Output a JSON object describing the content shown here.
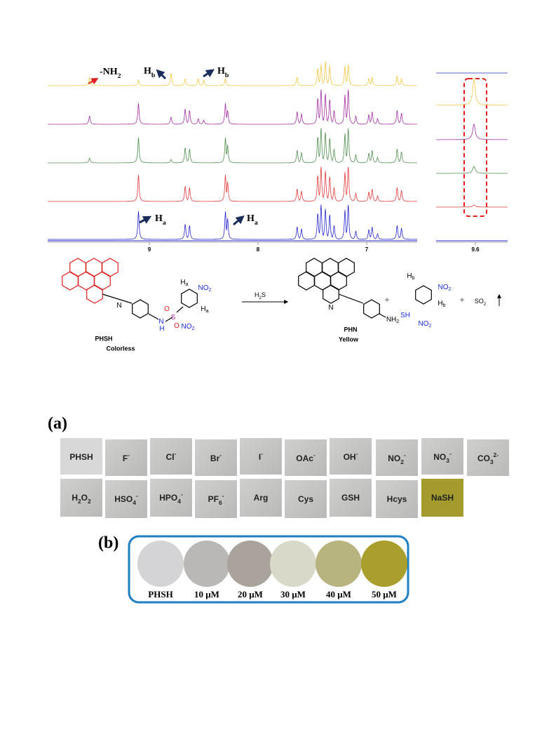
{
  "nmr": {
    "annotations": [
      [
        {
          "text": "-NH"
        },
        {
          "text": "2",
          "pos": "sub"
        }
      ],
      [
        {
          "text": "H"
        },
        {
          "text": "b",
          "pos": "sub"
        }
      ],
      [
        {
          "text": "H"
        },
        {
          "text": "b",
          "pos": "sub"
        }
      ],
      [
        {
          "text": "H"
        },
        {
          "text": "a",
          "pos": "sub"
        }
      ],
      [
        {
          "text": "H"
        },
        {
          "text": "a",
          "pos": "sub"
        }
      ]
    ],
    "axis_ticks": [
      "9",
      "8",
      "7"
    ],
    "inset_tick": "9.6"
  },
  "scheme": {
    "reactant": {
      "name": "PHSH",
      "state": "Colorless"
    },
    "reagent": [
      {
        "text": "H"
      },
      {
        "text": "2",
        "pos": "sub"
      },
      {
        "text": "S"
      }
    ],
    "product": {
      "name": "PHN",
      "state": "Yellow"
    },
    "plus": [
      "+",
      "+"
    ],
    "byproduct": [
      {
        "text": "SO"
      },
      {
        "text": "2",
        "pos": "sub"
      }
    ],
    "reactant_atoms": [
      [
        {
          "text": "N"
        }
      ],
      [
        {
          "text": "N"
        }
      ],
      [
        {
          "text": "H"
        }
      ],
      [
        {
          "text": "S"
        }
      ],
      [
        {
          "text": "O"
        }
      ],
      [
        {
          "text": "O"
        }
      ],
      [
        {
          "text": "H"
        },
        {
          "text": "a",
          "pos": "sub"
        }
      ],
      [
        {
          "text": "H"
        },
        {
          "text": "a",
          "pos": "sub"
        }
      ],
      [
        {
          "text": "NO"
        },
        {
          "text": "2",
          "pos": "sub"
        }
      ],
      [
        {
          "text": "NO"
        },
        {
          "text": "2",
          "pos": "sub"
        }
      ]
    ],
    "product_atoms": [
      [
        {
          "text": "N"
        }
      ],
      [
        {
          "text": "NH"
        },
        {
          "text": "2",
          "pos": "sub"
        }
      ]
    ],
    "byproduct_atoms": [
      [
        {
          "text": "H"
        },
        {
          "text": "b",
          "pos": "sub"
        }
      ],
      [
        {
          "text": "H"
        },
        {
          "text": "b",
          "pos": "sub"
        }
      ],
      [
        {
          "text": "NO"
        },
        {
          "text": "2",
          "pos": "sub"
        }
      ],
      [
        {
          "text": "NO"
        },
        {
          "text": "2",
          "pos": "sub"
        }
      ],
      [
        {
          "text": "SH"
        }
      ]
    ]
  },
  "panel_a": {
    "label": "(a)",
    "row1": [
      [
        {
          "text": "PHSH"
        }
      ],
      [
        {
          "text": "F"
        },
        {
          "text": "-",
          "pos": "sup"
        }
      ],
      [
        {
          "text": "Cl"
        },
        {
          "text": "-",
          "pos": "sup"
        }
      ],
      [
        {
          "text": "Br"
        },
        {
          "text": "-",
          "pos": "sup"
        }
      ],
      [
        {
          "text": "I"
        },
        {
          "text": "-",
          "pos": "sup"
        }
      ],
      [
        {
          "text": "OAc"
        },
        {
          "text": "-",
          "pos": "sup"
        }
      ],
      [
        {
          "text": "OH"
        },
        {
          "text": "-",
          "pos": "sup"
        }
      ],
      [
        {
          "text": "NO"
        },
        {
          "text": "2",
          "pos": "sub"
        },
        {
          "text": "-",
          "pos": "sup"
        }
      ],
      [
        {
          "text": "NO"
        },
        {
          "text": "3",
          "pos": "sub"
        },
        {
          "text": "-",
          "pos": "sup"
        }
      ],
      [
        {
          "text": "CO"
        },
        {
          "text": "3",
          "pos": "sub"
        },
        {
          "text": "2-",
          "pos": "sup"
        }
      ]
    ],
    "row2": [
      [
        {
          "text": "H"
        },
        {
          "text": "2",
          "pos": "sub"
        },
        {
          "text": "O"
        },
        {
          "text": "2",
          "pos": "sub"
        }
      ],
      [
        {
          "text": "HSO"
        },
        {
          "text": "4",
          "pos": "sub"
        },
        {
          "text": "-",
          "pos": "sup"
        }
      ],
      [
        {
          "text": "HPO"
        },
        {
          "text": "4",
          "pos": "sub"
        },
        {
          "text": "-",
          "pos": "sup"
        }
      ],
      [
        {
          "text": "PF"
        },
        {
          "text": "6",
          "pos": "sub"
        },
        {
          "text": "-",
          "pos": "sup"
        }
      ],
      [
        {
          "text": "Arg"
        }
      ],
      [
        {
          "text": "Cys"
        }
      ],
      [
        {
          "text": "GSH"
        }
      ],
      [
        {
          "text": "Hcys"
        }
      ],
      [
        {
          "text": "NaSH"
        }
      ]
    ]
  },
  "panel_b": {
    "label": "(b)",
    "samples": [
      "PHSH",
      "10 μM",
      "20 μM",
      "30 μM",
      "40 μM",
      "50 μM"
    ]
  }
}
